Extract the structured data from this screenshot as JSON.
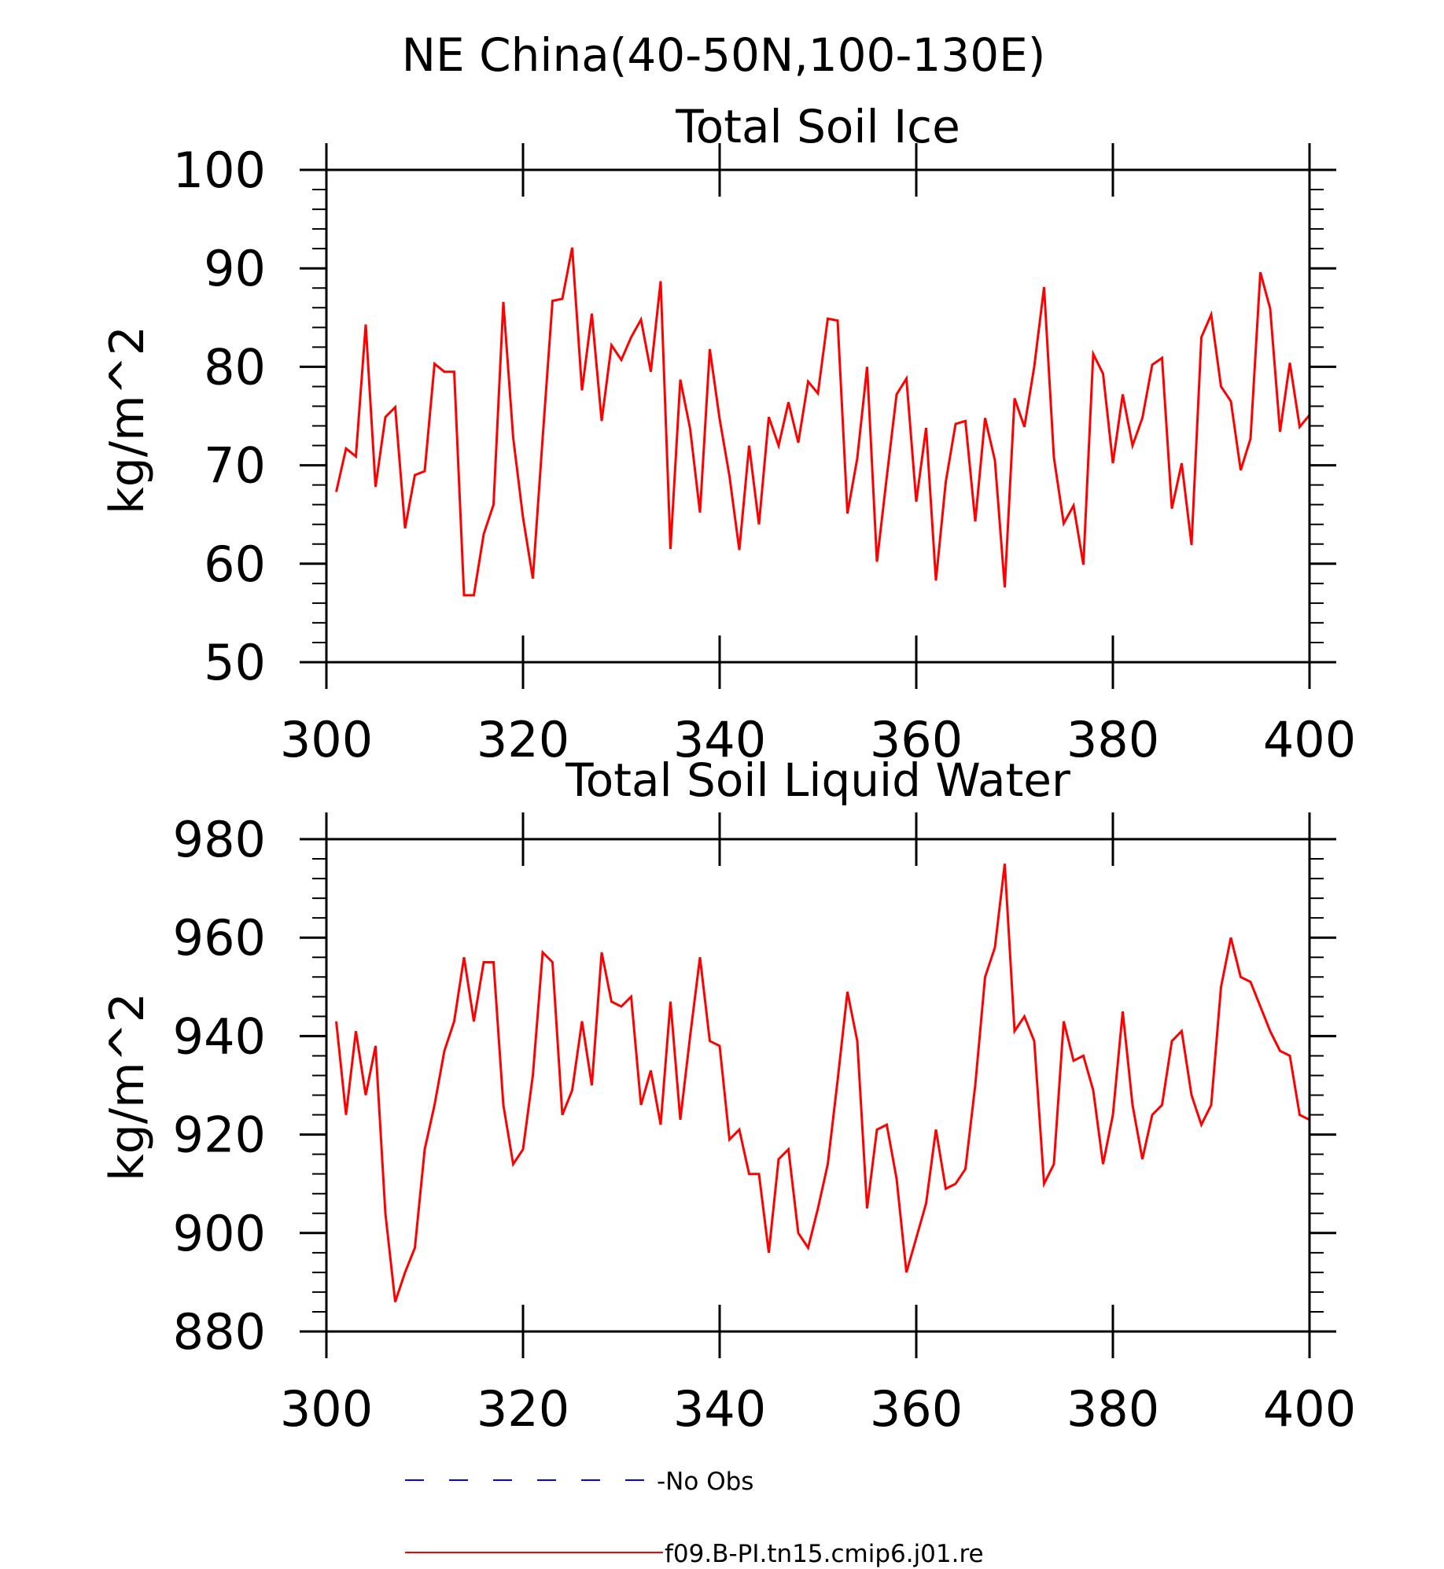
{
  "figure": {
    "main_title": "NE China(40-50N,100-130E)"
  },
  "legend": [
    {
      "label": "-No Obs",
      "color": "#0000ff",
      "style": "dashed"
    },
    {
      "label": "f09.B-PI.tn15.cmip6.j01.re",
      "color": "#ff0000",
      "style": "solid"
    }
  ],
  "chart_data": [
    {
      "type": "line",
      "title": "Total Soil Ice",
      "xlabel": "",
      "ylabel": "kg/m^2",
      "xlim": [
        300,
        400
      ],
      "ylim": [
        50,
        100
      ],
      "xticks": [
        300,
        320,
        340,
        360,
        380,
        400
      ],
      "yticks": [
        50,
        60,
        70,
        80,
        90,
        100
      ],
      "grid": false,
      "series": [
        {
          "name": "f09.B-PI.tn15.cmip6.j01.re",
          "color": "#ff0000",
          "x": [
            301,
            302,
            303,
            304,
            305,
            306,
            307,
            308,
            309,
            310,
            311,
            312,
            313,
            314,
            315,
            316,
            317,
            318,
            319,
            320,
            321,
            322,
            323,
            324,
            325,
            326,
            327,
            328,
            329,
            330,
            331,
            332,
            333,
            334,
            335,
            336,
            337,
            338,
            339,
            340,
            341,
            342,
            343,
            344,
            345,
            346,
            347,
            348,
            349,
            350,
            351,
            352,
            353,
            354,
            355,
            356,
            357,
            358,
            359,
            360,
            361,
            362,
            363,
            364,
            365,
            366,
            367,
            368,
            369,
            370,
            371,
            372,
            373,
            374,
            375,
            376,
            377,
            378,
            379,
            380,
            381,
            382,
            383,
            384,
            385,
            386,
            387,
            388,
            389,
            390,
            391,
            392,
            393,
            394,
            395,
            396,
            397,
            398,
            399,
            400
          ],
          "values": [
            67.3,
            71.7,
            70.9,
            84.3,
            67.8,
            74.9,
            75.9,
            63.6,
            69.0,
            69.4,
            80.3,
            79.5,
            79.5,
            56.8,
            56.8,
            63.0,
            66.0,
            86.6,
            72.8,
            64.7,
            58.5,
            72.8,
            86.7,
            86.9,
            92.1,
            77.6,
            85.4,
            74.5,
            82.2,
            80.7,
            83.0,
            84.8,
            79.5,
            88.7,
            61.5,
            78.7,
            73.7,
            65.2,
            81.8,
            74.7,
            68.9,
            61.4,
            72.0,
            64.0,
            74.9,
            72.0,
            76.4,
            72.3,
            78.5,
            77.3,
            84.9,
            84.7,
            65.1,
            70.7,
            80.0,
            60.2,
            68.8,
            77.2,
            78.8,
            66.3,
            73.8,
            58.3,
            68.3,
            74.2,
            74.5,
            64.3,
            74.8,
            70.5,
            57.6,
            76.8,
            73.9,
            80.0,
            88.1,
            70.8,
            64.1,
            65.9,
            59.9,
            81.3,
            79.3,
            70.2,
            77.2,
            72.0,
            74.8,
            80.2,
            80.9,
            65.6,
            70.2,
            61.9,
            83.0,
            85.3,
            78.0,
            76.5,
            69.5,
            72.7,
            89.6,
            85.9,
            73.4,
            80.4,
            73.9,
            75.1
          ]
        }
      ]
    },
    {
      "type": "line",
      "title": "Total Soil Liquid Water",
      "xlabel": "",
      "ylabel": "kg/m^2",
      "xlim": [
        300,
        400
      ],
      "ylim": [
        880,
        980
      ],
      "xticks": [
        300,
        320,
        340,
        360,
        380,
        400
      ],
      "yticks": [
        880,
        900,
        920,
        940,
        960,
        980
      ],
      "grid": false,
      "series": [
        {
          "name": "f09.B-PI.tn15.cmip6.j01.re",
          "color": "#ff0000",
          "x": [
            301,
            302,
            303,
            304,
            305,
            306,
            307,
            308,
            309,
            310,
            311,
            312,
            313,
            314,
            315,
            316,
            317,
            318,
            319,
            320,
            321,
            322,
            323,
            324,
            325,
            326,
            327,
            328,
            329,
            330,
            331,
            332,
            333,
            334,
            335,
            336,
            337,
            338,
            339,
            340,
            341,
            342,
            343,
            344,
            345,
            346,
            347,
            348,
            349,
            350,
            351,
            352,
            353,
            354,
            355,
            356,
            357,
            358,
            359,
            360,
            361,
            362,
            363,
            364,
            365,
            366,
            367,
            368,
            369,
            370,
            371,
            372,
            373,
            374,
            375,
            376,
            377,
            378,
            379,
            380,
            381,
            382,
            383,
            384,
            385,
            386,
            387,
            388,
            389,
            390,
            391,
            392,
            393,
            394,
            395,
            396,
            397,
            398,
            399,
            400
          ],
          "values": [
            943,
            924,
            941,
            928,
            938,
            904,
            886,
            892,
            897,
            917,
            926,
            937,
            943,
            956,
            943,
            955,
            955,
            926,
            914,
            917,
            932,
            957,
            955,
            924,
            929,
            943,
            930,
            957,
            947,
            946,
            948,
            926,
            933,
            922,
            947,
            923,
            940,
            956,
            939,
            938,
            919,
            921,
            912,
            912,
            896,
            915,
            917,
            900,
            897,
            905,
            914,
            931,
            949,
            939,
            905,
            921,
            922,
            911,
            892,
            899,
            906,
            921,
            909,
            910,
            913,
            930,
            952,
            958,
            975,
            941,
            944,
            939,
            910,
            914,
            943,
            935,
            936,
            929,
            914,
            924,
            945,
            926,
            915,
            924,
            926,
            939,
            941,
            928,
            922,
            926,
            950,
            960,
            952,
            951,
            946,
            941,
            937,
            936,
            924,
            923
          ]
        }
      ]
    }
  ]
}
